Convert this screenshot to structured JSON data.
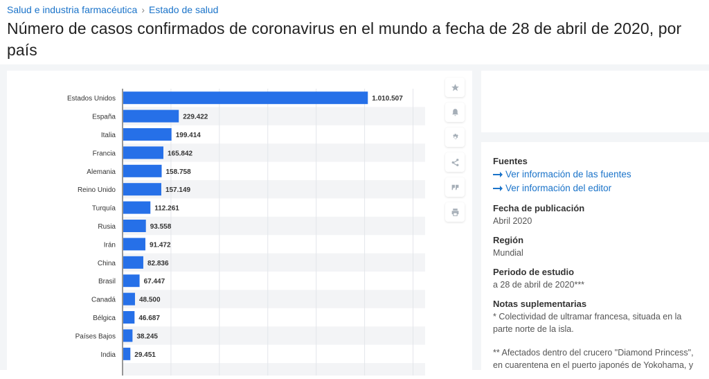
{
  "breadcrumb": {
    "items": [
      "Salud e industria farmacéutica",
      "Estado de salud"
    ],
    "separator": "›"
  },
  "title": "Número de casos confirmados de coronavirus en el mundo a fecha de 28 de abril de 2020, por país",
  "toolbar": {
    "icons": [
      "star-icon",
      "bell-icon",
      "gear-icon",
      "share-icon",
      "quote-icon",
      "print-icon"
    ]
  },
  "info": {
    "sources_heading": "Fuentes",
    "link_sources": "Ver información de las fuentes",
    "link_editor": "Ver información del editor",
    "pub_heading": "Fecha de publicación",
    "pub_value": "Abril 2020",
    "region_heading": "Región",
    "region_value": "Mundial",
    "period_heading": "Periodo de estudio",
    "period_value": "a 28 de abril de 2020***",
    "notes_heading": "Notas suplementarias",
    "note1": "* Colectividad de ultramar francesa, situada en la parte norte de la isla.",
    "note2": "** Afectados dentro del crucero \"Diamond Princess\", en cuarentena en el puerto japonés de Yokohama, y"
  },
  "colors": {
    "bar": "#2670e8",
    "link": "#1a73c9"
  },
  "chart_data": {
    "type": "bar",
    "orientation": "horizontal",
    "categories": [
      "Estados Unidos",
      "España",
      "Italia",
      "Francia",
      "Alemania",
      "Reino Unido",
      "Turquía",
      "Rusia",
      "Irán",
      "China",
      "Brasil",
      "Canadá",
      "Bélgica",
      "Países Bajos",
      "India"
    ],
    "values": [
      1010507,
      229422,
      199414,
      165842,
      158758,
      157149,
      112261,
      93558,
      91472,
      82836,
      67447,
      48500,
      46687,
      38245,
      29451
    ],
    "value_labels": [
      "1.010.507",
      "229.422",
      "199.414",
      "165.842",
      "158.758",
      "157.149",
      "112.261",
      "93.558",
      "91.472",
      "82.836",
      "67.447",
      "48.500",
      "46.687",
      "38.245",
      "29.451"
    ],
    "xlim": [
      0,
      1200000
    ],
    "grid": true,
    "title": "",
    "xlabel": "",
    "ylabel": ""
  }
}
